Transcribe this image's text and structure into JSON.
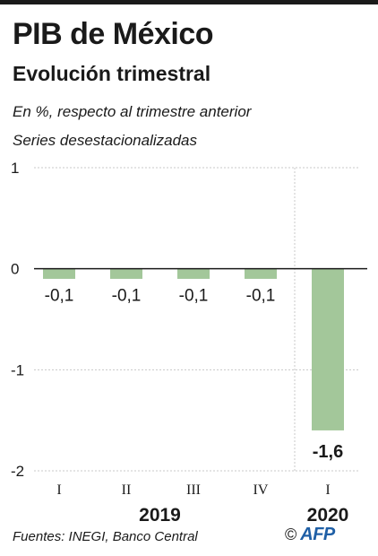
{
  "header": {
    "title": "PIB de México",
    "subtitle": "Evolución trimestral",
    "note1": "En %, respecto al trimestre anterior",
    "note2": "Series desestacionalizadas"
  },
  "footer": {
    "source": "Fuentes: INEGI, Banco Central",
    "copyright": "©",
    "logo": "AFP"
  },
  "colors": {
    "bar": "#a3c79a",
    "grid": "#c8c8c8",
    "zero_line": "#1a1a1a",
    "text": "#1a1a1a",
    "logo": "#1f5fa6"
  },
  "chart_data": {
    "type": "bar",
    "categories": [
      "I",
      "II",
      "III",
      "IV",
      "I"
    ],
    "year_groups": [
      {
        "label": "2019",
        "start": 0,
        "end": 3
      },
      {
        "label": "2020",
        "start": 4,
        "end": 4
      }
    ],
    "values": [
      -0.1,
      -0.1,
      -0.1,
      -0.1,
      -1.6
    ],
    "value_labels": [
      "-0,1",
      "-0,1",
      "-0,1",
      "-0,1",
      "-1,6"
    ],
    "highlight_index": 4,
    "yticks": [
      1,
      0,
      -1,
      -2
    ],
    "ytick_labels": [
      "1",
      "0",
      "-1",
      "-2"
    ],
    "ylim": [
      -2,
      1
    ],
    "grid": true,
    "xlabel": "",
    "ylabel": ""
  }
}
